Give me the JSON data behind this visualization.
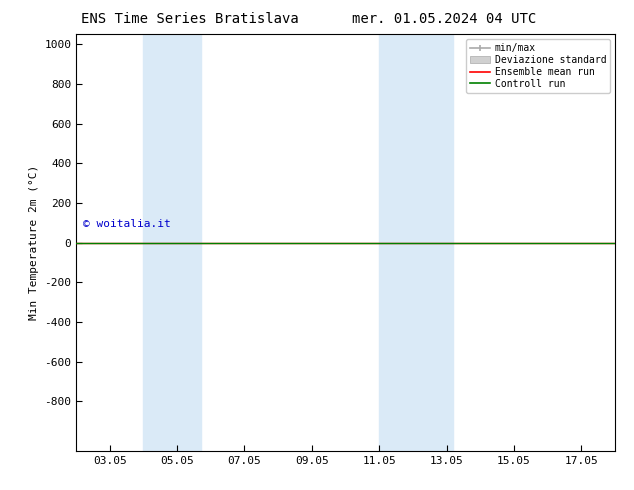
{
  "title_left": "ENS Time Series Bratislava",
  "title_right": "mer. 01.05.2024 04 UTC",
  "ylabel": "Min Temperature 2m (°C)",
  "ylim_top": -1050,
  "ylim_bottom": 1050,
  "yticks": [
    -800,
    -600,
    -400,
    -200,
    0,
    200,
    400,
    600,
    800,
    1000
  ],
  "xtick_labels": [
    "03.05",
    "05.05",
    "07.05",
    "09.05",
    "11.05",
    "13.05",
    "15.05",
    "17.05"
  ],
  "xtick_positions": [
    3,
    5,
    7,
    9,
    11,
    13,
    15,
    17
  ],
  "xlim": [
    2,
    18
  ],
  "shaded_bands": [
    {
      "x_start": 4.0,
      "x_end": 5.7
    },
    {
      "x_start": 11.0,
      "x_end": 13.2
    }
  ],
  "ensemble_mean_color": "#ff0000",
  "control_run_color": "#008000",
  "watermark": "© woitalia.it",
  "watermark_color": "#0000cc",
  "bg_color": "#ffffff",
  "plot_bg_color": "#ffffff",
  "band_color": "#daeaf7",
  "legend_items": [
    "min/max",
    "Deviazione standard",
    "Ensemble mean run",
    "Controll run"
  ],
  "title_fontsize": 10,
  "axis_fontsize": 8,
  "tick_fontsize": 8
}
